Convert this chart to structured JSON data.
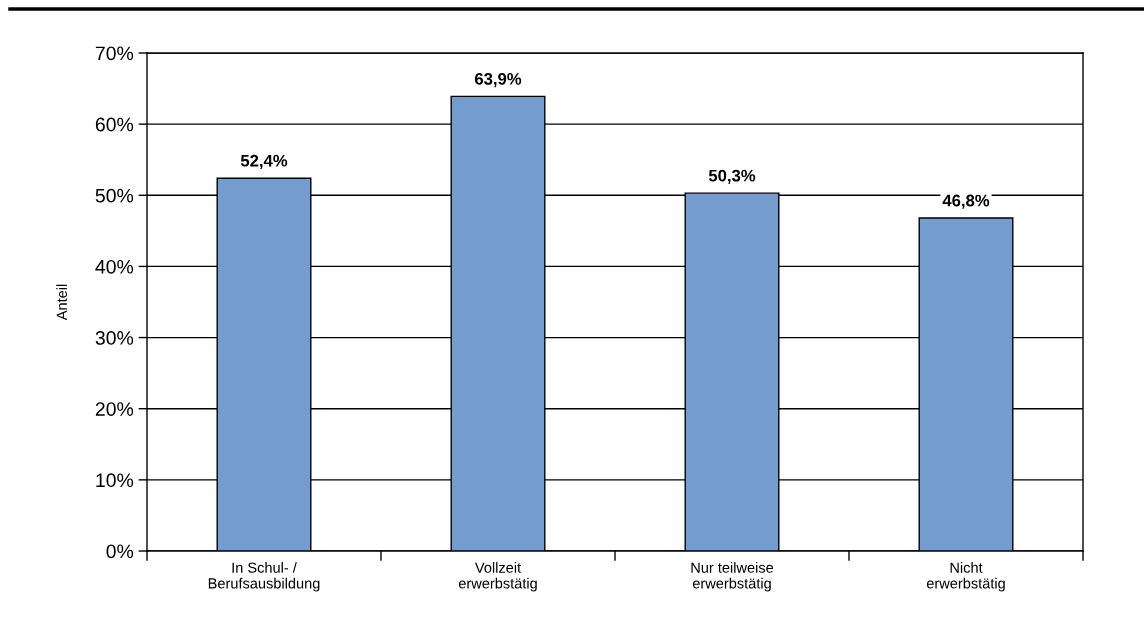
{
  "chart_data": {
    "type": "bar",
    "ylabel": "Anteil",
    "categories": [
      "In Schul- /\nBerufsausbildung",
      "Vollzeit\nerwerbstätig",
      "Nur teilweise\nerwerbstätig",
      "Nicht\nerwerbstätig"
    ],
    "values": [
      52.4,
      63.9,
      50.3,
      46.8
    ],
    "value_labels": [
      "52,4%",
      "63,9%",
      "50,3%",
      "46,8%"
    ],
    "color": "#749cce",
    "ylim": [
      0,
      70
    ],
    "yticks": [
      {
        "value": 0,
        "label": "0%"
      },
      {
        "value": 10,
        "label": "10%"
      },
      {
        "value": 20,
        "label": "20%"
      },
      {
        "value": 30,
        "label": "30%"
      },
      {
        "value": 40,
        "label": "40%"
      },
      {
        "value": 50,
        "label": "50%"
      },
      {
        "value": 60,
        "label": "60%"
      },
      {
        "value": 70,
        "label": "70%"
      }
    ],
    "grid": "y"
  }
}
